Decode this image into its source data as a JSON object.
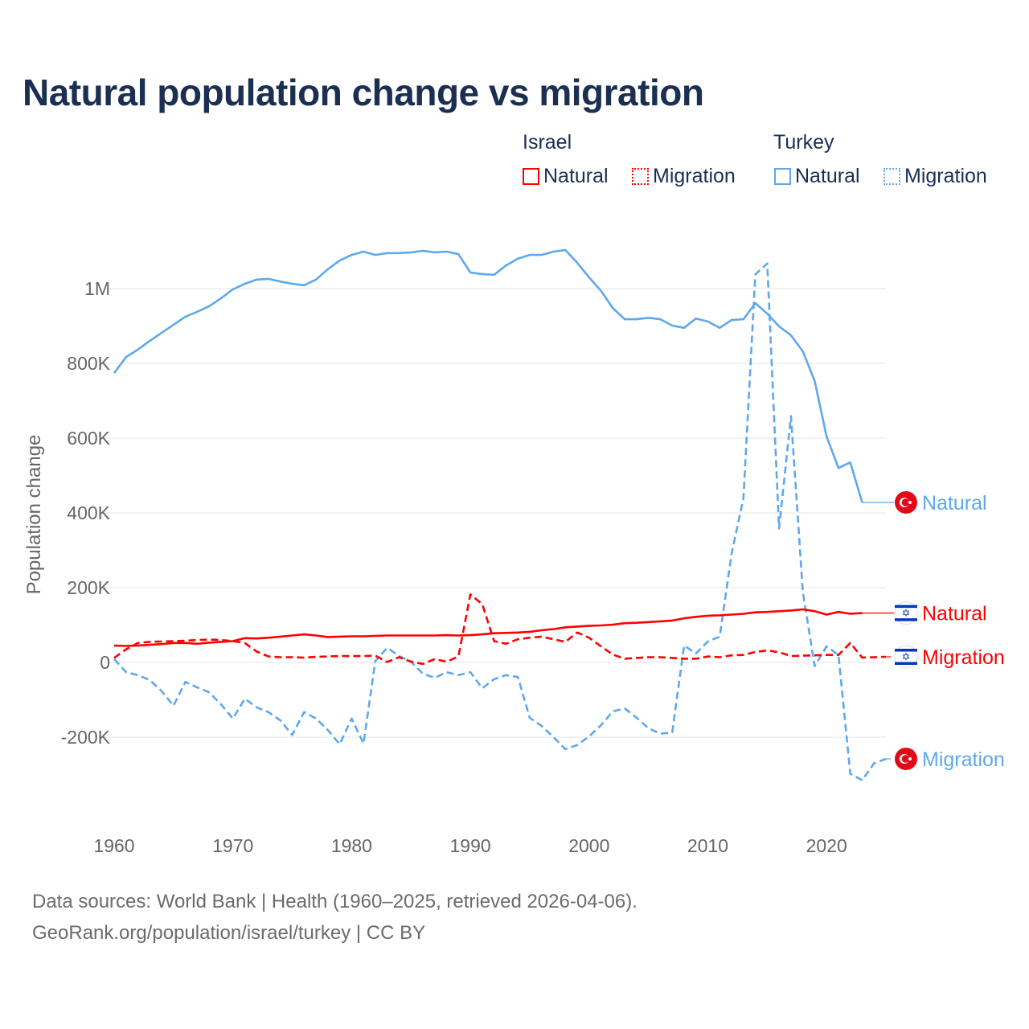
{
  "title": "Natural population change vs migration",
  "legend": {
    "groups": [
      {
        "name": "Israel",
        "items": [
          {
            "label": "Natural",
            "style": "solid"
          },
          {
            "label": "Migration",
            "style": "dotted"
          }
        ],
        "color": "#ff0000"
      },
      {
        "name": "Turkey",
        "items": [
          {
            "label": "Natural",
            "style": "solid"
          },
          {
            "label": "Migration",
            "style": "dotted"
          }
        ],
        "color": "#5ea8ec"
      }
    ]
  },
  "footer": {
    "line1": "Data sources: World Bank | Health (1960–2025, retrieved 2026-04-06).",
    "line2": "GeoRank.org/population/israel/turkey | CC BY"
  },
  "chart_data": {
    "type": "line",
    "title": "Natural population change vs migration",
    "xlabel": "",
    "ylabel": "Population change",
    "xlim": [
      1960,
      2025
    ],
    "ylim": [
      -350000,
      1150000
    ],
    "x_ticks": [
      1960,
      1970,
      1980,
      1990,
      2000,
      2010,
      2020
    ],
    "x_tick_labels": [
      "1960",
      "1970",
      "1980",
      "1990",
      "2000",
      "2010",
      "2020"
    ],
    "y_ticks": [
      -200000,
      0,
      200000,
      400000,
      600000,
      800000,
      1000000
    ],
    "y_tick_labels": [
      "-200K",
      "0",
      "200K",
      "400K",
      "600K",
      "800K",
      "1M"
    ],
    "grid": true,
    "legend_position": "top-right",
    "unit": "thousands",
    "series": [
      {
        "name": "Turkey Natural",
        "end_label": "Natural",
        "country": "Turkey",
        "color": "#5ea8ec",
        "dash": false,
        "start": 1960,
        "values": [
          774,
          817,
          837,
          860,
          882,
          903,
          925,
          938,
          953,
          974,
          998,
          1013,
          1024,
          1026,
          1019,
          1013,
          1009,
          1024,
          1052,
          1075,
          1090,
          1099,
          1090,
          1095,
          1095,
          1097,
          1101,
          1097,
          1099,
          1092,
          1043,
          1039,
          1037,
          1062,
          1080,
          1090,
          1090,
          1099,
          1103,
          1069,
          1030,
          994,
          948,
          918,
          918,
          922,
          918,
          901,
          895,
          920,
          912,
          895,
          916,
          918,
          961,
          933,
          899,
          875,
          832,
          753,
          604,
          520,
          535,
          428
        ]
      },
      {
        "name": "Turkey Migration",
        "end_label": "Migration",
        "country": "Turkey",
        "color": "#5ea8ec",
        "dash": true,
        "start": 1960,
        "values": [
          9,
          -26,
          -34,
          -47,
          -77,
          -116,
          -52,
          -67,
          -80,
          -112,
          -150,
          -97,
          -120,
          -133,
          -155,
          -194,
          -133,
          -150,
          -181,
          -219,
          -150,
          -217,
          4,
          39,
          17,
          2,
          -30,
          -41,
          -26,
          -34,
          -26,
          -69,
          -45,
          -34,
          -39,
          -148,
          -170,
          -200,
          -232,
          -221,
          -198,
          -168,
          -131,
          -123,
          -148,
          -176,
          -191,
          -187,
          45,
          24,
          56,
          69,
          290,
          440,
          1038,
          1067,
          358,
          659,
          188,
          -10,
          43,
          20,
          -298,
          -315,
          -270,
          -258
        ]
      },
      {
        "name": "Israel Natural",
        "end_label": "Natural",
        "country": "Israel",
        "color": "#ff0000",
        "dash": false,
        "start": 1960,
        "values": [
          45,
          44,
          45,
          47,
          49,
          52,
          52,
          50,
          53,
          55,
          57,
          65,
          64,
          66,
          69,
          72,
          75,
          72,
          68,
          69,
          70,
          70,
          71,
          72,
          72,
          72,
          72,
          72,
          73,
          72,
          73,
          75,
          78,
          79,
          80,
          82,
          86,
          89,
          94,
          96,
          98,
          99,
          101,
          105,
          106,
          108,
          110,
          112,
          118,
          122,
          125,
          126,
          128,
          130,
          134,
          135,
          137,
          139,
          142,
          137,
          128,
          135,
          130,
          132
        ]
      },
      {
        "name": "Israel Migration",
        "end_label": "Migration",
        "country": "Israel",
        "color": "#ff0000",
        "dash": true,
        "start": 1960,
        "values": [
          12,
          35,
          52,
          55,
          56,
          57,
          58,
          60,
          61,
          60,
          57,
          52,
          29,
          16,
          14,
          14,
          13,
          15,
          16,
          17,
          17,
          17,
          18,
          1,
          14,
          2,
          -4,
          9,
          2,
          16,
          182,
          156,
          57,
          50,
          62,
          66,
          69,
          62,
          55,
          80,
          66,
          43,
          21,
          10,
          12,
          14,
          14,
          12,
          10,
          10,
          16,
          14,
          19,
          20,
          28,
          32,
          27,
          17,
          18,
          19,
          20,
          20,
          52,
          13,
          14,
          15
        ]
      }
    ]
  }
}
